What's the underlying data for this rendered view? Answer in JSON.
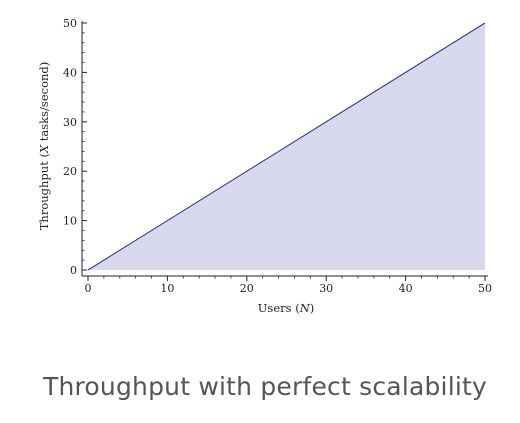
{
  "caption": "Throughput with perfect scalability",
  "chart_data": {
    "type": "area",
    "x": [
      0,
      50
    ],
    "y": [
      0,
      50
    ],
    "xlabel_prefix": "Users (",
    "xlabel_var": "N",
    "xlabel_suffix": ")",
    "ylabel_prefix": "Throughput (",
    "ylabel_var": "X",
    "ylabel_suffix": " tasks/second)",
    "xlim": [
      0,
      50
    ],
    "ylim": [
      0,
      50
    ],
    "xticks": [
      0,
      10,
      20,
      30,
      40,
      50
    ],
    "yticks": [
      0,
      10,
      20,
      30,
      40,
      50
    ],
    "grid": false,
    "line_color": "#3a3a8c",
    "fill_color": "#d9d9ee",
    "axis_color": "#222222"
  }
}
